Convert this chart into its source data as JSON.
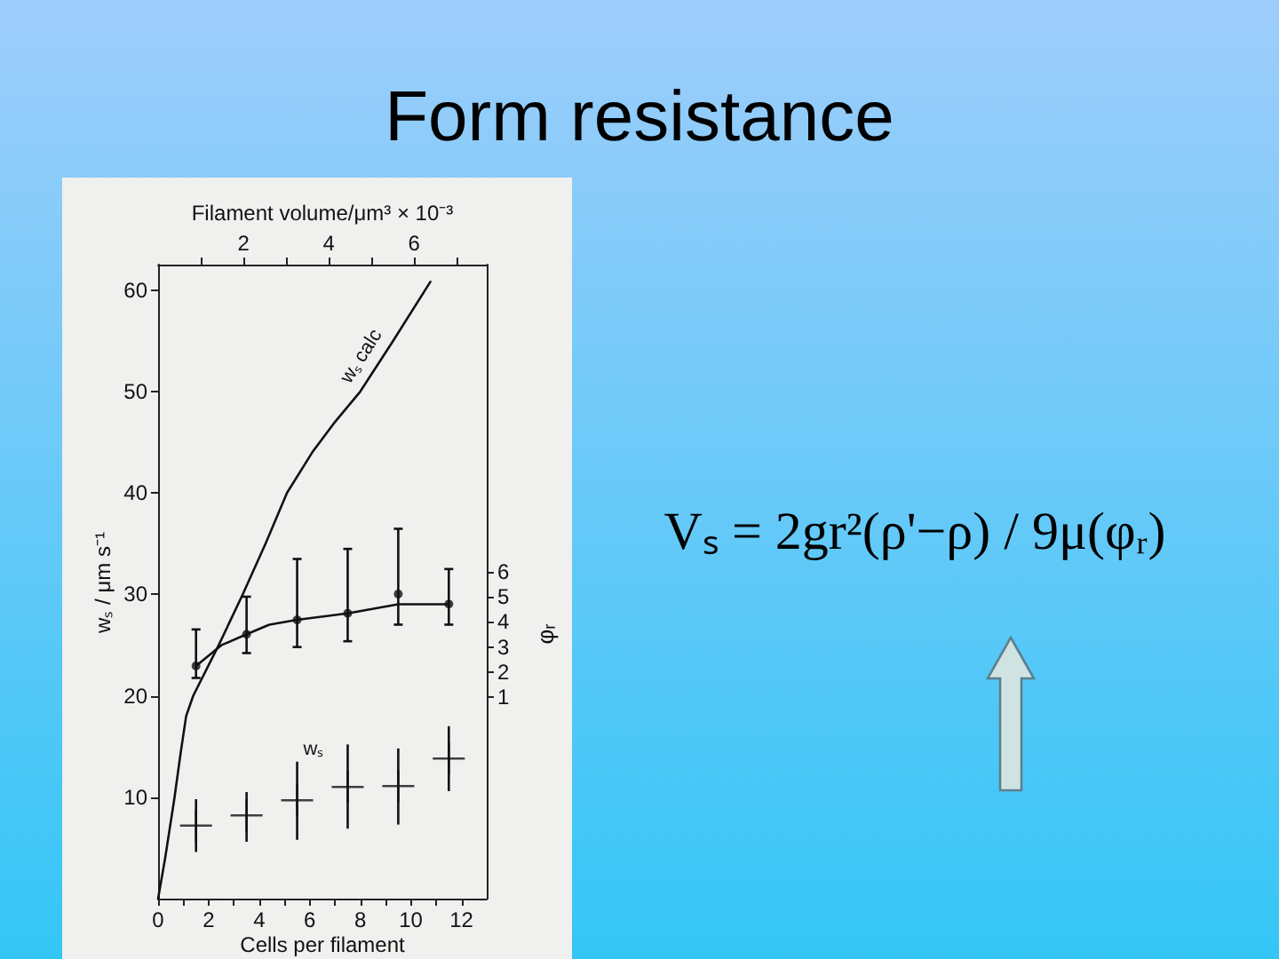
{
  "chart_data": {
    "type": "line",
    "title": "Form resistance",
    "xlabel": "Cells per filament",
    "x2label": "Filament volume/μm³ × 10⁻³",
    "ylabel": "wₛ / μm s⁻¹",
    "y2label": "φᵣ",
    "annotations": [
      "Vₛ = 2gr²(ρ'−ρ) / 9μ(φᵣ)"
    ],
    "xlim": [
      0,
      13
    ],
    "xticks": [
      0,
      {
        "value": 1,
        "label": null
      },
      2,
      {
        "value": 3,
        "label": null
      },
      4,
      {
        "value": 5,
        "label": null
      },
      6,
      {
        "value": 7,
        "label": null
      },
      8,
      {
        "value": 9,
        "label": null
      },
      10,
      {
        "value": 11,
        "label": null
      },
      12
    ],
    "x2lim": [
      0,
      7.7
    ],
    "x2ticks": [
      {
        "value": 1,
        "label": null
      },
      2,
      {
        "value": 3,
        "label": null
      },
      4,
      {
        "value": 5,
        "label": null
      },
      6,
      {
        "value": 7,
        "label": null
      }
    ],
    "ylim": [
      0,
      62.5
    ],
    "yticks": [
      10,
      20,
      30,
      40,
      50,
      60
    ],
    "y2lim": [
      -7,
      18.2
    ],
    "y2ticks": [
      1,
      2,
      3,
      4,
      5,
      6
    ],
    "series": [
      {
        "name": "wₛ calc",
        "color": "#111111",
        "marker": "none",
        "x": [
          0,
          0.28,
          0.64,
          0.9,
          1.11,
          1.39,
          2.4,
          3.35,
          4.25,
          5.1,
          6.1,
          7.0,
          8.0,
          9.3,
          10.77
        ],
        "values": [
          0,
          4,
          9.8,
          14.5,
          18,
          20,
          25,
          30,
          35,
          40,
          44,
          47,
          50,
          55,
          60.8
        ]
      },
      {
        "axis": "y2",
        "color": "#111111",
        "marker": "none",
        "x": [
          1.5,
          2.5,
          3.5,
          4.4,
          5.5,
          7.5,
          9.5,
          11.5
        ],
        "values": [
          2.25,
          3.07,
          3.51,
          3.89,
          4.08,
          4.34,
          4.7,
          4.7
        ]
      },
      {
        "type": "scatter",
        "axis": "y2",
        "color": "#111111",
        "marker": "circle",
        "x": [
          1.5,
          3.5,
          5.5,
          7.5,
          9.5,
          11.5
        ],
        "values": [
          2.25,
          3.51,
          4.08,
          4.34,
          5.11,
          4.71
        ],
        "errors": [
          [
            1.77,
            3.7
          ],
          [
            2.76,
            5.0
          ],
          [
            3.0,
            6.5
          ],
          [
            3.23,
            6.9
          ],
          [
            3.89,
            7.7
          ],
          [
            3.89,
            6.1
          ]
        ]
      },
      {
        "type": "scatter",
        "name": "wₛ",
        "color": "#111111",
        "marker": "cross",
        "x": [
          1.5,
          3.5,
          5.5,
          7.5,
          9.5,
          11.5
        ],
        "values": [
          7.2,
          8.2,
          9.7,
          11.0,
          11.1,
          13.8
        ],
        "errors": [
          [
            4.6,
            9.8
          ],
          [
            5.6,
            10.5
          ],
          [
            5.8,
            13.5
          ],
          [
            6.9,
            15.2
          ],
          [
            7.3,
            14.8
          ],
          [
            10.6,
            17.0
          ]
        ]
      }
    ]
  }
}
